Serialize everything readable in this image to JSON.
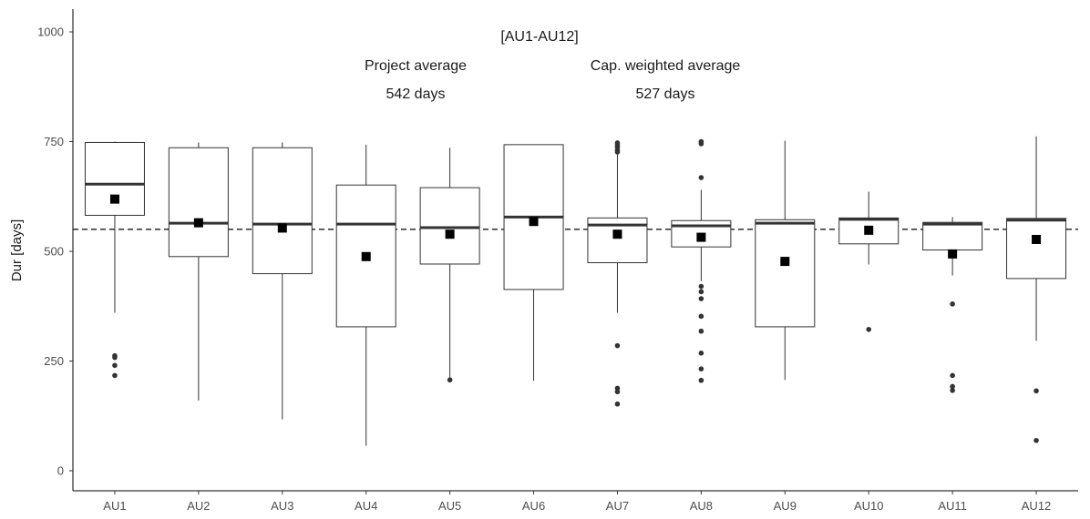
{
  "chart_data": {
    "type": "box",
    "title": "[AU1-AU12]",
    "xlabel": "",
    "ylabel": "Dur [days]",
    "ylim": [
      -30,
      1050
    ],
    "yticks": [
      0,
      250,
      500,
      750,
      1000
    ],
    "grid": false,
    "reference_line": {
      "value": 550,
      "style": "dashed"
    },
    "annotations": [
      {
        "label": "Project average",
        "value_text": "542 days"
      },
      {
        "label": "Cap. weighted average",
        "value_text": "527 days"
      }
    ],
    "categories": [
      "AU1",
      "AU2",
      "AU3",
      "AU4",
      "AU5",
      "AU6",
      "AU7",
      "AU8",
      "AU9",
      "AU10",
      "AU11",
      "AU12"
    ],
    "boxes": [
      {
        "category": "AU1",
        "whisker_low": 360,
        "q1": 582,
        "median": 653,
        "q3": 748,
        "whisker_high": 750,
        "mean": 619,
        "outliers": [
          262,
          258,
          240,
          217
        ]
      },
      {
        "category": "AU2",
        "whisker_low": 160,
        "q1": 488,
        "median": 564,
        "q3": 736,
        "whisker_high": 748,
        "mean": 565,
        "outliers": []
      },
      {
        "category": "AU3",
        "whisker_low": 117,
        "q1": 449,
        "median": 562,
        "q3": 736,
        "whisker_high": 748,
        "mean": 553,
        "outliers": []
      },
      {
        "category": "AU4",
        "whisker_low": 57,
        "q1": 328,
        "median": 562,
        "q3": 651,
        "whisker_high": 743,
        "mean": 488,
        "outliers": []
      },
      {
        "category": "AU5",
        "whisker_low": 210,
        "q1": 471,
        "median": 554,
        "q3": 645,
        "whisker_high": 736,
        "mean": 539,
        "outliers": [
          207
        ]
      },
      {
        "category": "AU6",
        "whisker_low": 205,
        "q1": 413,
        "median": 578,
        "q3": 743,
        "whisker_high": 743,
        "mean": 568,
        "outliers": []
      },
      {
        "category": "AU7",
        "whisker_low": 360,
        "q1": 474,
        "median": 560,
        "q3": 576,
        "whisker_high": 720,
        "mean": 539,
        "outliers": [
          747,
          742,
          737,
          730,
          726,
          285,
          188,
          180,
          152
        ]
      },
      {
        "category": "AU8",
        "whisker_low": 432,
        "q1": 510,
        "median": 558,
        "q3": 570,
        "whisker_high": 640,
        "mean": 532,
        "outliers": [
          750,
          745,
          668,
          420,
          408,
          392,
          352,
          318,
          268,
          232,
          206
        ]
      },
      {
        "category": "AU9",
        "whisker_low": 207,
        "q1": 328,
        "median": 564,
        "q3": 572,
        "whisker_high": 752,
        "mean": 477,
        "outliers": []
      },
      {
        "category": "AU10",
        "whisker_low": 470,
        "q1": 517,
        "median": 573,
        "q3": 576,
        "whisker_high": 636,
        "mean": 548,
        "outliers": [
          322
        ]
      },
      {
        "category": "AU11",
        "whisker_low": 445,
        "q1": 503,
        "median": 562,
        "q3": 566,
        "whisker_high": 578,
        "mean": 494,
        "outliers": [
          380,
          217,
          192,
          183
        ]
      },
      {
        "category": "AU12",
        "whisker_low": 296,
        "q1": 438,
        "median": 571,
        "q3": 575,
        "whisker_high": 762,
        "mean": 527,
        "outliers": [
          182,
          69
        ]
      }
    ]
  }
}
